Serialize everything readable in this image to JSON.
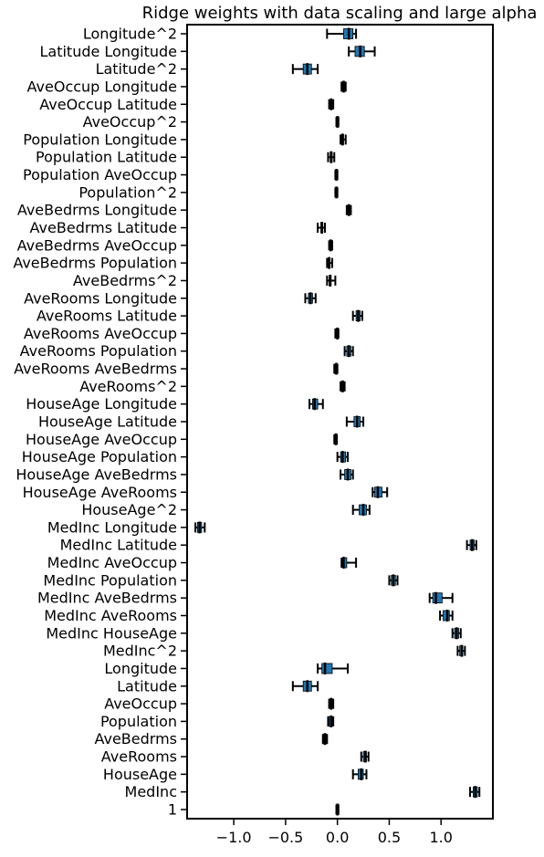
{
  "chart_data": {
    "type": "boxplot",
    "orientation": "horizontal",
    "title": "Ridge weights with data scaling and large alpha",
    "xlabel": "",
    "ylabel": "",
    "xlim": [
      -1.45,
      1.5
    ],
    "xticks": [
      -1.0,
      -0.5,
      0.0,
      0.5,
      1.0
    ],
    "xtick_labels": [
      "−1.0",
      "−0.5",
      "0.0",
      "0.5",
      "1.0"
    ],
    "grid": false,
    "colors": {
      "box": "#1f77b4",
      "whisker": "#000000",
      "median": "#000000"
    },
    "categories": [
      "Longitude^2",
      "Latitude Longitude",
      "Latitude^2",
      "AveOccup Longitude",
      "AveOccup Latitude",
      "AveOccup^2",
      "Population Longitude",
      "Population Latitude",
      "Population AveOccup",
      "Population^2",
      "AveBedrms Longitude",
      "AveBedrms Latitude",
      "AveBedrms AveOccup",
      "AveBedrms Population",
      "AveBedrms^2",
      "AveRooms Longitude",
      "AveRooms Latitude",
      "AveRooms AveOccup",
      "AveRooms Population",
      "AveRooms AveBedrms",
      "AveRooms^2",
      "HouseAge Longitude",
      "HouseAge Latitude",
      "HouseAge AveOccup",
      "HouseAge Population",
      "HouseAge AveBedrms",
      "HouseAge AveRooms",
      "HouseAge^2",
      "MedInc Longitude",
      "MedInc Latitude",
      "MedInc AveOccup",
      "MedInc Population",
      "MedInc AveBedrms",
      "MedInc AveRooms",
      "MedInc HouseAge",
      "MedInc^2",
      "Longitude",
      "Latitude",
      "AveOccup",
      "Population",
      "AveBedrms",
      "AveRooms",
      "HouseAge",
      "MedInc",
      "1"
    ],
    "boxes": [
      {
        "min": -0.1,
        "q1": 0.06,
        "median": 0.11,
        "q3": 0.15,
        "max": 0.18
      },
      {
        "min": 0.11,
        "q1": 0.17,
        "median": 0.22,
        "q3": 0.26,
        "max": 0.36
      },
      {
        "min": -0.43,
        "q1": -0.33,
        "median": -0.29,
        "q3": -0.25,
        "max": -0.19
      },
      {
        "min": 0.04,
        "q1": 0.05,
        "median": 0.06,
        "q3": 0.07,
        "max": 0.08
      },
      {
        "min": -0.08,
        "q1": -0.07,
        "median": -0.06,
        "q3": -0.05,
        "max": -0.04
      },
      {
        "min": -0.01,
        "q1": -0.005,
        "median": 0.0,
        "q3": 0.005,
        "max": 0.01
      },
      {
        "min": 0.03,
        "q1": 0.04,
        "median": 0.05,
        "q3": 0.06,
        "max": 0.08
      },
      {
        "min": -0.09,
        "q1": -0.07,
        "median": -0.06,
        "q3": -0.05,
        "max": -0.03
      },
      {
        "min": -0.02,
        "q1": -0.015,
        "median": -0.01,
        "q3": -0.005,
        "max": 0.0
      },
      {
        "min": -0.02,
        "q1": -0.015,
        "median": -0.01,
        "q3": -0.005,
        "max": 0.0
      },
      {
        "min": 0.09,
        "q1": 0.1,
        "median": 0.11,
        "q3": 0.12,
        "max": 0.13
      },
      {
        "min": -0.19,
        "q1": -0.16,
        "median": -0.15,
        "q3": -0.14,
        "max": -0.12
      },
      {
        "min": -0.08,
        "q1": -0.07,
        "median": -0.065,
        "q3": -0.06,
        "max": -0.05
      },
      {
        "min": -0.1,
        "q1": -0.09,
        "median": -0.08,
        "q3": -0.07,
        "max": -0.05
      },
      {
        "min": -0.1,
        "q1": -0.08,
        "median": -0.07,
        "q3": -0.06,
        "max": -0.02
      },
      {
        "min": -0.31,
        "q1": -0.28,
        "median": -0.26,
        "q3": -0.24,
        "max": -0.21
      },
      {
        "min": 0.15,
        "q1": 0.18,
        "median": 0.2,
        "q3": 0.22,
        "max": 0.24
      },
      {
        "min": -0.02,
        "q1": -0.01,
        "median": 0.0,
        "q3": 0.005,
        "max": 0.01
      },
      {
        "min": 0.07,
        "q1": 0.09,
        "median": 0.11,
        "q3": 0.13,
        "max": 0.15
      },
      {
        "min": -0.03,
        "q1": -0.02,
        "median": -0.01,
        "q3": -0.005,
        "max": 0.0
      },
      {
        "min": 0.03,
        "q1": 0.04,
        "median": 0.05,
        "q3": 0.06,
        "max": 0.07
      },
      {
        "min": -0.27,
        "q1": -0.24,
        "median": -0.22,
        "q3": -0.19,
        "max": -0.14
      },
      {
        "min": 0.09,
        "q1": 0.16,
        "median": 0.19,
        "q3": 0.22,
        "max": 0.25
      },
      {
        "min": -0.03,
        "q1": -0.02,
        "median": -0.015,
        "q3": -0.01,
        "max": -0.005
      },
      {
        "min": 0.0,
        "q1": 0.03,
        "median": 0.05,
        "q3": 0.08,
        "max": 0.1
      },
      {
        "min": 0.03,
        "q1": 0.07,
        "median": 0.1,
        "q3": 0.13,
        "max": 0.15
      },
      {
        "min": 0.34,
        "q1": 0.36,
        "median": 0.39,
        "q3": 0.43,
        "max": 0.48
      },
      {
        "min": 0.15,
        "q1": 0.21,
        "median": 0.25,
        "q3": 0.28,
        "max": 0.31
      },
      {
        "min": -1.37,
        "q1": -1.35,
        "median": -1.33,
        "q3": -1.31,
        "max": -1.28
      },
      {
        "min": 1.25,
        "q1": 1.28,
        "median": 1.3,
        "q3": 1.32,
        "max": 1.34
      },
      {
        "min": 0.04,
        "q1": 0.05,
        "median": 0.06,
        "q3": 0.09,
        "max": 0.18
      },
      {
        "min": 0.5,
        "q1": 0.52,
        "median": 0.54,
        "q3": 0.56,
        "max": 0.58
      },
      {
        "min": 0.89,
        "q1": 0.92,
        "median": 0.95,
        "q3": 1.01,
        "max": 1.11
      },
      {
        "min": 0.99,
        "q1": 1.02,
        "median": 1.06,
        "q3": 1.08,
        "max": 1.11
      },
      {
        "min": 1.11,
        "q1": 1.13,
        "median": 1.15,
        "q3": 1.17,
        "max": 1.19
      },
      {
        "min": 1.16,
        "q1": 1.18,
        "median": 1.2,
        "q3": 1.21,
        "max": 1.23
      },
      {
        "min": -0.19,
        "q1": -0.15,
        "median": -0.12,
        "q3": -0.05,
        "max": 0.1
      },
      {
        "min": -0.43,
        "q1": -0.33,
        "median": -0.29,
        "q3": -0.25,
        "max": -0.19
      },
      {
        "min": -0.08,
        "q1": -0.07,
        "median": -0.06,
        "q3": -0.05,
        "max": -0.04
      },
      {
        "min": -0.09,
        "q1": -0.08,
        "median": -0.06,
        "q3": -0.05,
        "max": -0.04
      },
      {
        "min": -0.14,
        "q1": -0.13,
        "median": -0.12,
        "q3": -0.11,
        "max": -0.1
      },
      {
        "min": 0.23,
        "q1": 0.25,
        "median": 0.27,
        "q3": 0.28,
        "max": 0.3
      },
      {
        "min": 0.15,
        "q1": 0.2,
        "median": 0.23,
        "q3": 0.25,
        "max": 0.28
      },
      {
        "min": 1.28,
        "q1": 1.31,
        "median": 1.33,
        "q3": 1.35,
        "max": 1.37
      },
      {
        "min": -0.01,
        "q1": -0.005,
        "median": 0.0,
        "q3": 0.005,
        "max": 0.01
      }
    ]
  }
}
